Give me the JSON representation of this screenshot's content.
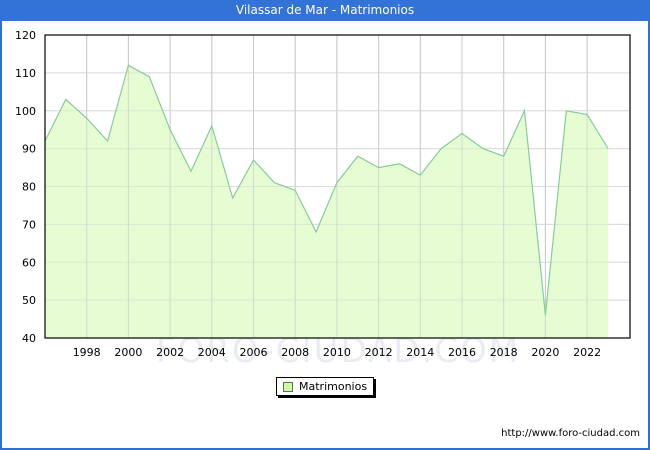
{
  "window": {
    "title": "Vilassar de Mar - Matrimonios",
    "accent_color": "#3373d8"
  },
  "legend": {
    "label": "Matrimonios",
    "swatch_color": "#ccff99"
  },
  "watermark": "FORO-CIUDAD.COM",
  "footer": {
    "url": "http://www.foro-ciudad.com"
  },
  "axes": {
    "y_ticks": [
      "120",
      "110",
      "100",
      "90",
      "80",
      "70",
      "60",
      "50",
      "40"
    ],
    "x_ticks": [
      "1998",
      "2000",
      "2002",
      "2004",
      "2006",
      "2008",
      "2010",
      "2012",
      "2014",
      "2016",
      "2018",
      "2020",
      "2022"
    ]
  },
  "chart_data": {
    "type": "area",
    "title": "Vilassar de Mar - Matrimonios",
    "xlabel": "",
    "ylabel": "",
    "x": [
      1996,
      1997,
      1998,
      1999,
      2000,
      2001,
      2002,
      2003,
      2004,
      2005,
      2006,
      2007,
      2008,
      2009,
      2010,
      2011,
      2012,
      2013,
      2014,
      2015,
      2016,
      2017,
      2018,
      2019,
      2020,
      2021,
      2022,
      2023
    ],
    "series": [
      {
        "name": "Matrimonios",
        "values": [
          92,
          103,
          98,
          92,
          112,
          109,
          95,
          84,
          96,
          77,
          87,
          81,
          79,
          68,
          81,
          88,
          85,
          86,
          83,
          90,
          94,
          90,
          88,
          100,
          46,
          100,
          99,
          90
        ],
        "fill_color": "#e2fdcc",
        "line_color": "#88cc99"
      }
    ],
    "ylim": [
      40,
      120
    ],
    "xlim": [
      1996,
      2024
    ],
    "y_ticks": [
      40,
      50,
      60,
      70,
      80,
      90,
      100,
      110,
      120
    ],
    "x_ticks": [
      1998,
      2000,
      2002,
      2004,
      2006,
      2008,
      2010,
      2012,
      2014,
      2016,
      2018,
      2020,
      2022
    ],
    "grid": true,
    "legend_position": "bottom-center"
  }
}
